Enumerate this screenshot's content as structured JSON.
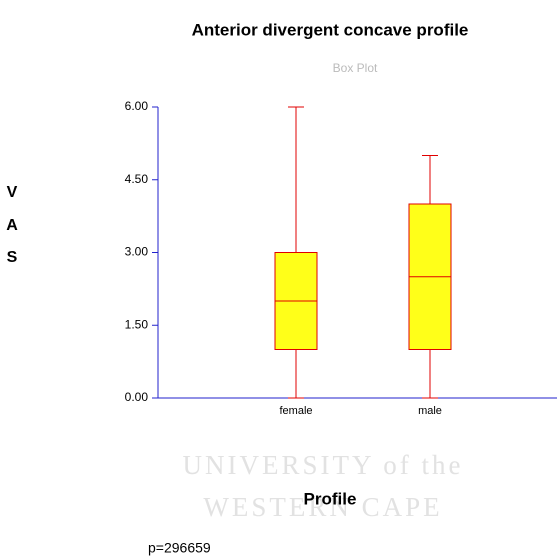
{
  "chart_data": {
    "type": "box",
    "title": "Anterior divergent concave profile",
    "subtitle": "Box Plot",
    "y_label": [
      "V",
      "A",
      "S"
    ],
    "x_label": "Profile",
    "note": "p=296659",
    "watermark": [
      "UNIVERSITY of the",
      "WESTERN CAPE"
    ],
    "categories": [
      "female",
      "male"
    ],
    "min": [
      0,
      0
    ],
    "q1": [
      1,
      1
    ],
    "median": [
      2,
      2.5
    ],
    "q3": [
      3,
      4
    ],
    "max": [
      6,
      5
    ],
    "fill": "#ffff00",
    "color": "#e00000",
    "axis_color": "#2222cc",
    "ylim": [
      0,
      6
    ],
    "yticks": [
      {
        "value": 0,
        "label": "0.00"
      },
      {
        "value": 1.5,
        "label": "1.50"
      },
      {
        "value": 3,
        "label": "3.00"
      },
      {
        "value": 4.5,
        "label": "4.50"
      },
      {
        "value": 6,
        "label": "6.00"
      }
    ]
  }
}
